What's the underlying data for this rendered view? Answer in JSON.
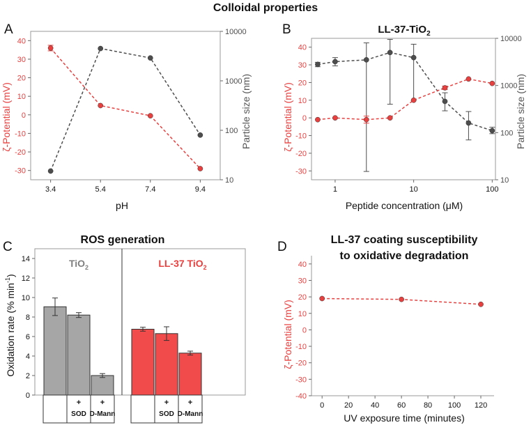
{
  "figure": {
    "title": "Colloidal properties"
  },
  "colors": {
    "zeta": "#e8403f",
    "size": "#4d4d4d",
    "gray_bar": "#a6a6a6",
    "red_bar": "#f24b4b",
    "gray_text": "#7f7f7f"
  },
  "chart_data": [
    {
      "panel": "A",
      "type": "line",
      "title": "",
      "xlabel": "pH",
      "ylabel": "ζ-Potential (mV)",
      "y2label": "Particle size (nm)",
      "x": [
        3.4,
        5.4,
        7.4,
        9.4
      ],
      "xticks": [
        "3.4",
        "5.4",
        "7.4",
        "9.4"
      ],
      "ylim": [
        -35,
        45
      ],
      "yticks": [
        -30,
        -20,
        -10,
        0,
        10,
        20,
        30,
        40
      ],
      "y2lim": [
        10,
        10000
      ],
      "y2scale": "log",
      "y2ticks": [
        10,
        100,
        1000,
        10000
      ],
      "series": [
        {
          "axis": "left",
          "values": [
            36,
            5,
            -0.5,
            -29
          ],
          "errors": [
            1.5,
            0,
            0,
            0
          ]
        },
        {
          "axis": "right",
          "values": [
            15,
            4500,
            2900,
            80
          ]
        }
      ]
    },
    {
      "panel": "B",
      "type": "line",
      "title_main": "LL-37-TiO",
      "title_sub": "2",
      "xlabel": "Peptide concentration (μM)",
      "ylabel": "ζ-Potential (mV)",
      "y2label": "Particle size (nm)",
      "xscale": "log",
      "xlim": [
        0.5,
        110
      ],
      "xticks": [
        1,
        10,
        100
      ],
      "ylim": [
        -35,
        45
      ],
      "yticks": [
        -30,
        -20,
        -10,
        0,
        10,
        20,
        30,
        40
      ],
      "y2lim": [
        10,
        10000
      ],
      "y2scale": "log",
      "y2ticks": [
        10,
        100,
        1000,
        10000
      ],
      "x": [
        0.6,
        1,
        2.5,
        5,
        10,
        25,
        50,
        100
      ],
      "series": [
        {
          "axis": "left",
          "values": [
            -1,
            0,
            -1,
            0,
            10,
            17,
            22,
            19.5
          ],
          "errors": [
            0,
            0,
            2,
            0,
            0,
            1,
            0,
            0
          ]
        },
        {
          "axis": "right",
          "values": [
            2800,
            3200,
            3500,
            5000,
            3900,
            460,
            160,
            110
          ],
          "err_low": [
            2500,
            2600,
            15,
            400,
            480,
            290,
            70,
            95
          ],
          "err_high": [
            3100,
            3900,
            8000,
            9500,
            7500,
            700,
            280,
            130
          ]
        }
      ]
    },
    {
      "panel": "C",
      "type": "bar",
      "title": "ROS generation",
      "ylabel_main": "Oxidation rate (% min",
      "ylabel_sup": "-1",
      "ylabel_end": ")",
      "ylim": [
        0,
        15
      ],
      "yticks": [
        0,
        2,
        4,
        6,
        8,
        10,
        12,
        14
      ],
      "groups": [
        {
          "label_main": "TiO",
          "label_sub": "2",
          "color": "gray",
          "values": [
            9.05,
            8.2,
            2.0
          ],
          "errors": [
            0.9,
            0.25,
            0.2
          ]
        },
        {
          "label_main": "LL-37 TiO",
          "label_sub": "2",
          "color": "red",
          "values": [
            6.75,
            6.3,
            4.3
          ],
          "errors": [
            0.2,
            0.7,
            0.2
          ]
        }
      ],
      "categories": [
        {
          "plus": "",
          "name": ""
        },
        {
          "plus": "+",
          "name": "SOD"
        },
        {
          "plus": "+",
          "name": "D-Mann"
        }
      ]
    },
    {
      "panel": "D",
      "type": "line",
      "title_line1": "LL-37 coating susceptibility",
      "title_line2": "to oxidative degradation",
      "xlabel": "UV exposure time (minutes)",
      "ylabel": "ζ-Potential (mV)",
      "xlim": [
        -8,
        130
      ],
      "xticks": [
        0,
        20,
        40,
        60,
        80,
        100,
        120
      ],
      "ylim": [
        -40,
        45
      ],
      "yticks": [
        -40,
        -30,
        -20,
        -10,
        0,
        10,
        20,
        30,
        40
      ],
      "x": [
        0,
        60,
        120
      ],
      "series": [
        {
          "axis": "left",
          "values": [
            19,
            18.5,
            15.5
          ]
        }
      ]
    }
  ]
}
